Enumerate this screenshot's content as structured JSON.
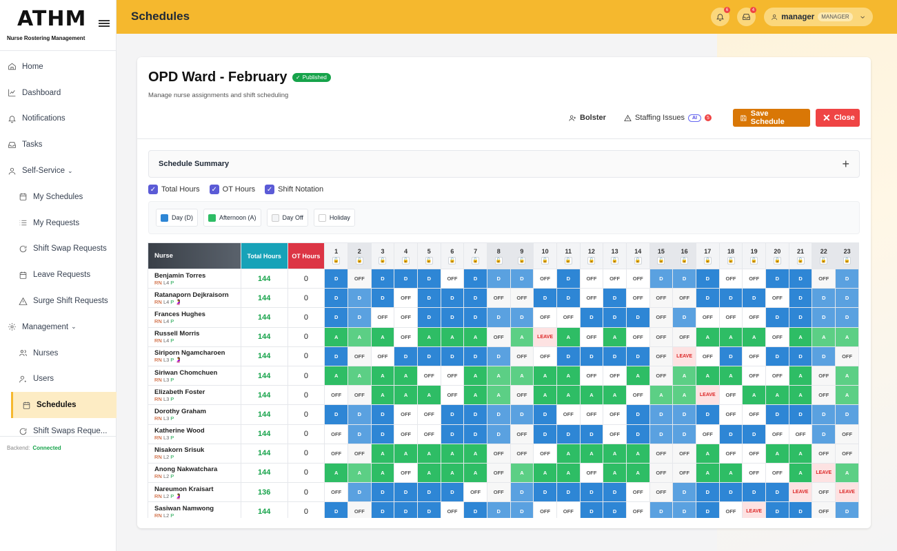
{
  "app": {
    "logo": "ATHM",
    "subtitle": "Nurse Rostering Management",
    "page_title": "Schedules"
  },
  "nav": [
    {
      "label": "Home",
      "icon": "home-icon",
      "sub": false
    },
    {
      "label": "Dashboard",
      "icon": "chart-icon",
      "sub": false
    },
    {
      "label": "Notifications",
      "icon": "bell-icon",
      "sub": false
    },
    {
      "label": "Tasks",
      "icon": "inbox-icon",
      "sub": false
    },
    {
      "label": "Self-Service",
      "icon": "user-icon",
      "sub": false,
      "chevron": true
    },
    {
      "label": "My Schedules",
      "icon": "calendar-icon",
      "sub": true
    },
    {
      "label": "My Requests",
      "icon": "list-icon",
      "sub": true
    },
    {
      "label": "Shift Swap Requests",
      "icon": "refresh-icon",
      "sub": true
    },
    {
      "label": "Leave Requests",
      "icon": "calendar-icon",
      "sub": true
    },
    {
      "label": "Surge Shift Requests",
      "icon": "warning-icon",
      "sub": true
    },
    {
      "label": "Management",
      "icon": "gear-icon",
      "sub": false,
      "chevron": true
    },
    {
      "label": "Nurses",
      "icon": "users-icon",
      "sub": true
    },
    {
      "label": "Users",
      "icon": "user-gear-icon",
      "sub": true
    },
    {
      "label": "Schedules",
      "icon": "calendar-icon",
      "sub": true,
      "active": true
    },
    {
      "label": "Shift Swaps Reque...",
      "icon": "refresh-icon",
      "sub": true
    }
  ],
  "backend": {
    "label": "Backend:",
    "status": "Connected"
  },
  "header": {
    "notif_count": "6",
    "mail_count": "4",
    "username": "manager",
    "role": "MANAGER"
  },
  "schedule": {
    "title": "OPD Ward - February",
    "status": "Published",
    "subtitle": "Manage nurse assignments and shift scheduling",
    "bolster": "Bolster",
    "staffing": "Staffing Issues",
    "ai": "AI",
    "issues": "5",
    "save": "Save Schedule",
    "close": "Close",
    "summary": "Schedule Summary",
    "expand": "+",
    "checks": [
      "Total Hours",
      "OT Hours",
      "Shift Notation"
    ],
    "legend": [
      {
        "label": "Day (D)",
        "color": "#2e86d5"
      },
      {
        "label": "Afternoon (A)",
        "color": "#2ebd65"
      },
      {
        "label": "Day Off",
        "color": "#f3f4f6"
      },
      {
        "label": "Holiday",
        "color": "#ffffff"
      }
    ],
    "headers": {
      "nurse": "Nurse",
      "total": "Total Hours",
      "ot": "OT Hours"
    },
    "days": [
      "1",
      "2",
      "3",
      "4",
      "5",
      "6",
      "7",
      "8",
      "9",
      "10",
      "11",
      "12",
      "13",
      "14",
      "15",
      "16",
      "17",
      "18",
      "19",
      "20",
      "21",
      "22",
      "23"
    ],
    "weekend_days": [
      1,
      7,
      8,
      14,
      15,
      21,
      22
    ],
    "nurses": [
      {
        "name": "Benjamin Torres",
        "role": "RN",
        "level": "L4",
        "flag": "P",
        "pregnant": false,
        "total": "144",
        "ot": "0",
        "shifts": [
          "D",
          "OFF",
          "D",
          "D",
          "D",
          "OFF",
          "D",
          "D",
          "D",
          "OFF",
          "D",
          "OFF",
          "OFF",
          "OFF",
          "D",
          "D",
          "D",
          "OFF",
          "OFF",
          "D",
          "D",
          "OFF",
          "D"
        ]
      },
      {
        "name": "Ratanaporn Dejkraisorn",
        "role": "RN",
        "level": "L4",
        "flag": "P",
        "pregnant": true,
        "total": "144",
        "ot": "0",
        "shifts": [
          "D",
          "D",
          "D",
          "OFF",
          "D",
          "D",
          "D",
          "OFF",
          "OFF",
          "D",
          "D",
          "OFF",
          "D",
          "OFF",
          "OFF",
          "OFF",
          "D",
          "D",
          "D",
          "OFF",
          "D",
          "D",
          "D"
        ]
      },
      {
        "name": "Frances Hughes",
        "role": "RN",
        "level": "L4",
        "flag": "P",
        "pregnant": false,
        "total": "144",
        "ot": "0",
        "shifts": [
          "D",
          "D",
          "OFF",
          "OFF",
          "D",
          "D",
          "D",
          "D",
          "D",
          "OFF",
          "OFF",
          "D",
          "D",
          "D",
          "OFF",
          "D",
          "OFF",
          "OFF",
          "OFF",
          "D",
          "D",
          "D",
          "D"
        ]
      },
      {
        "name": "Russell Morris",
        "role": "RN",
        "level": "L4",
        "flag": "P",
        "pregnant": false,
        "total": "144",
        "ot": "0",
        "shifts": [
          "A",
          "A",
          "A",
          "OFF",
          "A",
          "A",
          "A",
          "OFF",
          "A",
          "LEAVE",
          "A",
          "OFF",
          "A",
          "OFF",
          "OFF",
          "OFF",
          "A",
          "A",
          "A",
          "OFF",
          "A",
          "A",
          "A"
        ]
      },
      {
        "name": "Siriporn Ngamcharoen",
        "role": "RN",
        "level": "L3",
        "flag": "P",
        "pregnant": true,
        "total": "144",
        "ot": "0",
        "shifts": [
          "D",
          "OFF",
          "OFF",
          "D",
          "D",
          "D",
          "D",
          "D",
          "OFF",
          "OFF",
          "D",
          "D",
          "D",
          "D",
          "OFF",
          "LEAVE",
          "OFF",
          "D",
          "OFF",
          "D",
          "D",
          "D",
          "OFF"
        ]
      },
      {
        "name": "Siriwan Chomchuen",
        "role": "RN",
        "level": "L3",
        "flag": "P",
        "pregnant": false,
        "total": "144",
        "ot": "0",
        "shifts": [
          "A",
          "A",
          "A",
          "A",
          "OFF",
          "OFF",
          "A",
          "A",
          "A",
          "A",
          "A",
          "OFF",
          "OFF",
          "A",
          "OFF",
          "A",
          "A",
          "A",
          "OFF",
          "OFF",
          "A",
          "OFF",
          "A"
        ]
      },
      {
        "name": "Elizabeth Foster",
        "role": "RN",
        "level": "L3",
        "flag": "P",
        "pregnant": false,
        "total": "144",
        "ot": "0",
        "shifts": [
          "OFF",
          "OFF",
          "A",
          "A",
          "A",
          "OFF",
          "A",
          "A",
          "OFF",
          "A",
          "A",
          "A",
          "A",
          "OFF",
          "A",
          "A",
          "LEAVE",
          "OFF",
          "A",
          "A",
          "A",
          "OFF",
          "A"
        ]
      },
      {
        "name": "Dorothy Graham",
        "role": "RN",
        "level": "L3",
        "flag": "P",
        "pregnant": false,
        "total": "144",
        "ot": "0",
        "shifts": [
          "D",
          "D",
          "D",
          "OFF",
          "OFF",
          "D",
          "D",
          "D",
          "D",
          "D",
          "OFF",
          "OFF",
          "OFF",
          "D",
          "D",
          "D",
          "D",
          "OFF",
          "OFF",
          "D",
          "D",
          "D",
          "D"
        ]
      },
      {
        "name": "Katherine Wood",
        "role": "RN",
        "level": "L3",
        "flag": "P",
        "pregnant": false,
        "total": "144",
        "ot": "0",
        "shifts": [
          "OFF",
          "D",
          "D",
          "OFF",
          "OFF",
          "D",
          "D",
          "D",
          "OFF",
          "D",
          "D",
          "D",
          "OFF",
          "D",
          "D",
          "D",
          "OFF",
          "D",
          "D",
          "OFF",
          "OFF",
          "D",
          "OFF"
        ]
      },
      {
        "name": "Nisakorn Srisuk",
        "role": "RN",
        "level": "L2",
        "flag": "P",
        "pregnant": false,
        "total": "144",
        "ot": "0",
        "shifts": [
          "OFF",
          "OFF",
          "A",
          "A",
          "A",
          "A",
          "A",
          "OFF",
          "OFF",
          "OFF",
          "A",
          "A",
          "A",
          "A",
          "OFF",
          "OFF",
          "A",
          "OFF",
          "OFF",
          "A",
          "A",
          "OFF",
          "OFF"
        ]
      },
      {
        "name": "Anong Nakwatchara",
        "role": "RN",
        "level": "L2",
        "flag": "P",
        "pregnant": false,
        "total": "144",
        "ot": "0",
        "shifts": [
          "A",
          "A",
          "A",
          "OFF",
          "A",
          "A",
          "A",
          "OFF",
          "A",
          "A",
          "A",
          "OFF",
          "A",
          "A",
          "OFF",
          "OFF",
          "A",
          "A",
          "OFF",
          "OFF",
          "A",
          "LEAVE",
          "A"
        ]
      },
      {
        "name": "Nareumon Kraisart",
        "role": "RN",
        "level": "L2",
        "flag": "P",
        "pregnant": true,
        "total": "136",
        "ot": "0",
        "shifts": [
          "OFF",
          "D",
          "D",
          "D",
          "D",
          "D",
          "OFF",
          "OFF",
          "D",
          "D",
          "D",
          "D",
          "D",
          "OFF",
          "OFF",
          "D",
          "D",
          "D",
          "D",
          "D",
          "LEAVE",
          "OFF",
          "LEAVE"
        ]
      },
      {
        "name": "Sasiwan Namwong",
        "role": "RN",
        "level": "L2",
        "flag": "P",
        "pregnant": false,
        "total": "144",
        "ot": "0",
        "shifts": [
          "D",
          "OFF",
          "D",
          "D",
          "D",
          "OFF",
          "D",
          "D",
          "D",
          "OFF",
          "OFF",
          "D",
          "D",
          "OFF",
          "D",
          "D",
          "D",
          "OFF",
          "LEAVE",
          "D",
          "D",
          "OFF",
          "D"
        ]
      }
    ]
  },
  "colors": {
    "accent": "#f5b82e",
    "day": "#2e86d5",
    "afternoon": "#2ebd65",
    "leave": "#dc2626",
    "published": "#16a34a"
  }
}
